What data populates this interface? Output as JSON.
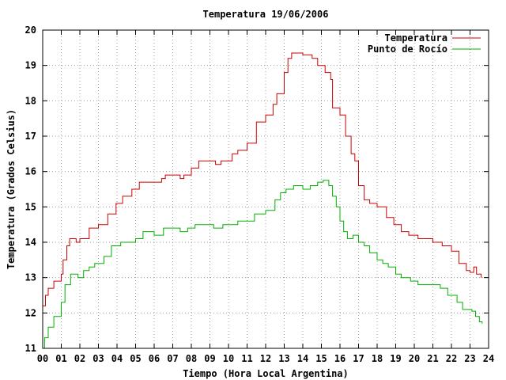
{
  "chart_data": {
    "type": "line",
    "title": "Temperatura 19/06/2006",
    "xlabel": "Tiempo (Hora Local Argentina)",
    "ylabel": "Temperatura (Grados Celsius)",
    "xlim": [
      0,
      24
    ],
    "ylim": [
      11,
      20
    ],
    "x_ticks": [
      "00",
      "01",
      "02",
      "03",
      "04",
      "05",
      "06",
      "07",
      "08",
      "09",
      "10",
      "11",
      "12",
      "13",
      "14",
      "15",
      "16",
      "17",
      "18",
      "19",
      "20",
      "21",
      "22",
      "23",
      "24"
    ],
    "y_ticks": [
      "11",
      "12",
      "13",
      "14",
      "15",
      "16",
      "17",
      "18",
      "19",
      "20"
    ],
    "grid": true,
    "legend_position": "top-right",
    "series": [
      {
        "name": "Temperatura",
        "color": "#cc0000",
        "points": [
          [
            0.0,
            12.2
          ],
          [
            0.15,
            12.5
          ],
          [
            0.3,
            12.7
          ],
          [
            0.6,
            12.9
          ],
          [
            1.0,
            13.1
          ],
          [
            1.1,
            13.5
          ],
          [
            1.3,
            13.9
          ],
          [
            1.45,
            14.1
          ],
          [
            1.8,
            14.0
          ],
          [
            2.0,
            14.1
          ],
          [
            2.5,
            14.4
          ],
          [
            3.0,
            14.5
          ],
          [
            3.5,
            14.8
          ],
          [
            3.95,
            15.1
          ],
          [
            4.3,
            15.3
          ],
          [
            4.8,
            15.5
          ],
          [
            5.2,
            15.7
          ],
          [
            6.0,
            15.7
          ],
          [
            6.4,
            15.8
          ],
          [
            6.6,
            15.9
          ],
          [
            7.0,
            15.9
          ],
          [
            7.4,
            15.8
          ],
          [
            7.6,
            15.9
          ],
          [
            8.0,
            16.1
          ],
          [
            8.4,
            16.3
          ],
          [
            9.0,
            16.3
          ],
          [
            9.3,
            16.2
          ],
          [
            9.6,
            16.3
          ],
          [
            10.2,
            16.5
          ],
          [
            10.5,
            16.6
          ],
          [
            11.0,
            16.8
          ],
          [
            11.5,
            17.4
          ],
          [
            12.0,
            17.6
          ],
          [
            12.4,
            17.9
          ],
          [
            12.6,
            18.2
          ],
          [
            13.0,
            18.8
          ],
          [
            13.2,
            19.2
          ],
          [
            13.4,
            19.35
          ],
          [
            14.0,
            19.3
          ],
          [
            14.5,
            19.2
          ],
          [
            14.8,
            19.0
          ],
          [
            15.2,
            18.8
          ],
          [
            15.5,
            18.6
          ],
          [
            15.6,
            17.8
          ],
          [
            16.0,
            17.6
          ],
          [
            16.3,
            17.0
          ],
          [
            16.6,
            16.5
          ],
          [
            16.8,
            16.3
          ],
          [
            17.0,
            15.6
          ],
          [
            17.3,
            15.2
          ],
          [
            17.6,
            15.1
          ],
          [
            18.0,
            15.0
          ],
          [
            18.5,
            14.7
          ],
          [
            18.9,
            14.5
          ],
          [
            19.3,
            14.3
          ],
          [
            19.7,
            14.2
          ],
          [
            20.2,
            14.1
          ],
          [
            21.0,
            14.0
          ],
          [
            21.5,
            13.9
          ],
          [
            22.0,
            13.75
          ],
          [
            22.4,
            13.4
          ],
          [
            22.8,
            13.2
          ],
          [
            23.0,
            13.15
          ],
          [
            23.2,
            13.3
          ],
          [
            23.35,
            13.1
          ],
          [
            23.6,
            13.0
          ]
        ]
      },
      {
        "name": "Punto de Rocío",
        "color": "#00b000",
        "points": [
          [
            0.0,
            11.0
          ],
          [
            0.1,
            11.3
          ],
          [
            0.3,
            11.6
          ],
          [
            0.6,
            11.9
          ],
          [
            1.0,
            12.3
          ],
          [
            1.2,
            12.8
          ],
          [
            1.5,
            13.1
          ],
          [
            1.9,
            13.0
          ],
          [
            2.2,
            13.2
          ],
          [
            2.5,
            13.3
          ],
          [
            2.8,
            13.4
          ],
          [
            3.3,
            13.6
          ],
          [
            3.7,
            13.9
          ],
          [
            4.2,
            14.0
          ],
          [
            4.6,
            14.0
          ],
          [
            5.0,
            14.1
          ],
          [
            5.4,
            14.3
          ],
          [
            6.0,
            14.2
          ],
          [
            6.5,
            14.4
          ],
          [
            7.0,
            14.4
          ],
          [
            7.4,
            14.3
          ],
          [
            7.8,
            14.4
          ],
          [
            8.2,
            14.5
          ],
          [
            8.8,
            14.5
          ],
          [
            9.2,
            14.4
          ],
          [
            9.7,
            14.5
          ],
          [
            10.2,
            14.5
          ],
          [
            10.5,
            14.6
          ],
          [
            11.0,
            14.6
          ],
          [
            11.4,
            14.8
          ],
          [
            12.0,
            14.9
          ],
          [
            12.5,
            15.2
          ],
          [
            12.8,
            15.4
          ],
          [
            13.1,
            15.5
          ],
          [
            13.5,
            15.6
          ],
          [
            14.0,
            15.5
          ],
          [
            14.4,
            15.6
          ],
          [
            14.8,
            15.7
          ],
          [
            15.1,
            15.75
          ],
          [
            15.4,
            15.6
          ],
          [
            15.6,
            15.3
          ],
          [
            15.8,
            15.0
          ],
          [
            16.0,
            14.6
          ],
          [
            16.2,
            14.3
          ],
          [
            16.4,
            14.1
          ],
          [
            16.7,
            14.2
          ],
          [
            17.0,
            14.0
          ],
          [
            17.3,
            13.9
          ],
          [
            17.6,
            13.7
          ],
          [
            18.0,
            13.5
          ],
          [
            18.3,
            13.4
          ],
          [
            18.6,
            13.3
          ],
          [
            19.0,
            13.1
          ],
          [
            19.3,
            13.0
          ],
          [
            19.8,
            12.9
          ],
          [
            20.2,
            12.8
          ],
          [
            21.0,
            12.8
          ],
          [
            21.4,
            12.7
          ],
          [
            21.8,
            12.5
          ],
          [
            22.3,
            12.3
          ],
          [
            22.6,
            12.1
          ],
          [
            23.1,
            12.05
          ],
          [
            23.3,
            11.9
          ],
          [
            23.5,
            11.75
          ],
          [
            23.65,
            11.7
          ]
        ]
      }
    ]
  }
}
